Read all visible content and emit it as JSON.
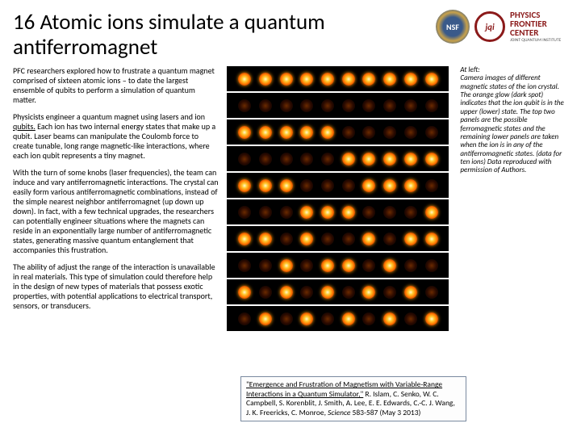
{
  "title": "16 Atomic ions simulate a quantum antiferromagnet",
  "logos": {
    "nsf": "NSF",
    "jqi": "jqi",
    "pfc_line1": "PHYSICS",
    "pfc_line2": "FRONTIER",
    "pfc_line3": "CENTER",
    "pfc_line4": "JOINT QUANTUM INSTITUTE"
  },
  "paragraphs": {
    "p1": "PFC researchers explored how to frustrate a quantum magnet comprised of sixteen atomic ions – to date the largest ensemble of qubits to perform a simulation of quantum matter.",
    "p2a": "Physicists engineer a quantum magnet using lasers and ion ",
    "p2b": "qubits.",
    "p2c": " Each ion has two internal energy states that make up a qubit.  Laser beams can manipulate the Coulomb force to create tunable, long range magnetic-like interactions, where each ion qubit represents a tiny magnet.",
    "p3": "With the turn of some knobs (laser frequencies), the team can induce and vary antiferromagnetic interactions. The crystal can easily form various antiferromagnetic combinations, instead of the simple nearest neighbor antiferromagnet (up down up down).  In fact, with a few technical upgrades, the researchers can potentially engineer situations where the magnets can reside in an exponentially large number of antiferromagnetic states, generating massive quantum entanglement that accompanies this frustration.",
    "p4": "The ability of adjust the range of the interaction is unavailable in real materials.  This type of simulation could therefore help in the design of new types of materials that possess exotic properties, with potential applications to electrical transport, sensors, or transducers."
  },
  "caption": {
    "lead": "At left:",
    "body": "Camera images of different magnetic states of the ion crystal. The orange glow (dark spot) indicates that the ion qubit is in the upper (lower) state. The top two panels are the possible ferromagnetic states and the remaining lower panels are taken when the ion is in any of the antiferromagnetic states. (data for ten ions) Data reproduced with permission of Authors."
  },
  "citation": {
    "title": "\"Emergence and Frustration of Magnetism with Variable-Range Interactions in a Quantum Simulator,\"",
    "authors": " R. Islam, C. Senko, W. C. Campbell, S. Korenblit, J. Smith, A. Lee, E. E. Edwards, C.-C. J. Wang, J. K. Freericks, C. Monroe, ",
    "journal": "Science",
    "rest": " 583-587 (May 3 2013)"
  },
  "ion_image": {
    "n_ions": 10,
    "rows": [
      {
        "pattern": [
          1,
          1,
          1,
          1,
          1,
          1,
          1,
          1,
          1,
          1
        ]
      },
      {
        "pattern": [
          0,
          0,
          0,
          0,
          0,
          0,
          0,
          0,
          0,
          0
        ]
      },
      {
        "pattern": [
          1,
          1,
          1,
          1,
          1,
          0,
          0,
          0,
          0,
          0
        ]
      },
      {
        "pattern": [
          0,
          0,
          0,
          0,
          0,
          1,
          1,
          1,
          1,
          1
        ]
      },
      {
        "pattern": [
          1,
          1,
          1,
          0,
          0,
          0,
          1,
          1,
          1,
          0
        ]
      },
      {
        "pattern": [
          0,
          0,
          0,
          1,
          1,
          1,
          0,
          0,
          0,
          1
        ]
      },
      {
        "pattern": [
          1,
          1,
          0,
          1,
          0,
          0,
          1,
          0,
          1,
          1
        ]
      },
      {
        "pattern": [
          0,
          0,
          1,
          0,
          1,
          1,
          0,
          1,
          0,
          0
        ]
      },
      {
        "pattern": [
          1,
          0,
          1,
          0,
          1,
          0,
          1,
          0,
          1,
          0
        ]
      },
      {
        "pattern": [
          0,
          1,
          0,
          1,
          0,
          1,
          0,
          1,
          0,
          1
        ]
      }
    ],
    "colors": {
      "background": "#000000",
      "bright_center": "#fff8d0",
      "bright_mid": "#ff7a00",
      "dark_center": "#6a2a00"
    }
  }
}
